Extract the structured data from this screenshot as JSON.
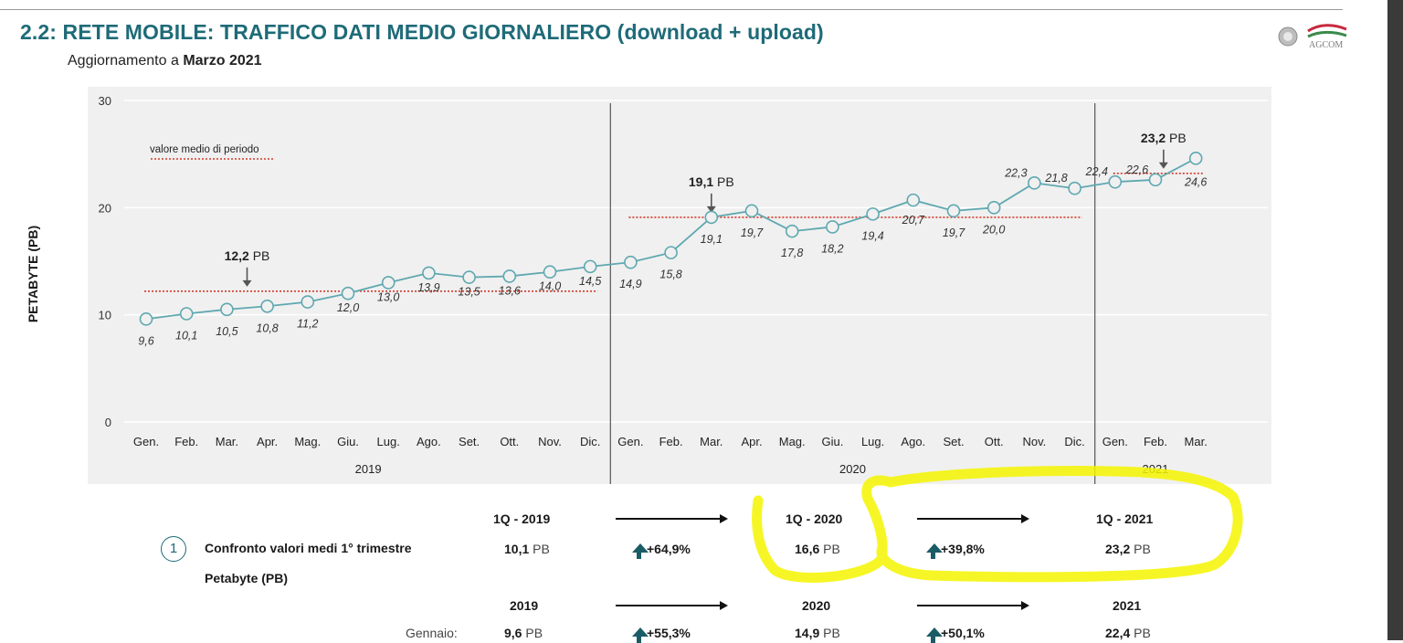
{
  "header": {
    "title": "2.2: RETE MOBILE: TRAFFICO DATI MEDIO GIORNALIERO (download + upload)",
    "subtitle_prefix": "Aggiornamento a ",
    "subtitle_bold": "Marzo 2021",
    "logo_text": "AGCOM"
  },
  "chart_data": {
    "type": "line",
    "ylabel": "PETABYTE (PB)",
    "ylim": [
      0,
      30
    ],
    "yticks": [
      0,
      10,
      20,
      30
    ],
    "grid": true,
    "categories": [
      "Gen.",
      "Feb.",
      "Mar.",
      "Apr.",
      "Mag.",
      "Giu.",
      "Lug.",
      "Ago.",
      "Set.",
      "Ott.",
      "Nov.",
      "Dic.",
      "Gen.",
      "Feb.",
      "Mar.",
      "Apr.",
      "Mag.",
      "Giu.",
      "Lug.",
      "Ago.",
      "Set.",
      "Ott.",
      "Nov.",
      "Dic.",
      "Gen.",
      "Feb.",
      "Mar."
    ],
    "values": [
      9.6,
      10.1,
      10.5,
      10.8,
      11.2,
      12.0,
      13.0,
      13.9,
      13.5,
      13.6,
      14.0,
      14.5,
      14.9,
      15.8,
      19.1,
      19.7,
      17.8,
      18.2,
      19.4,
      20.7,
      19.7,
      20.0,
      22.3,
      21.8,
      22.4,
      22.6,
      24.6
    ],
    "point_labels": [
      "9,6",
      "10,1",
      "10,5",
      "10,8",
      "11,2",
      "12,0",
      "13,0",
      "13,9",
      "13,5",
      "13,6",
      "14,0",
      "14,5",
      "14,9",
      "15,8",
      "19,1",
      "19,7",
      "17,8",
      "18,2",
      "19,4",
      "20,7",
      "19,7",
      "20,0",
      "22,3",
      "21,8",
      "22,4",
      "22,6",
      "24,6"
    ],
    "years": [
      {
        "label": "2019",
        "start": 0,
        "end": 11
      },
      {
        "label": "2020",
        "start": 12,
        "end": 23
      },
      {
        "label": "2021",
        "start": 24,
        "end": 26
      }
    ],
    "period_means": [
      {
        "value": 12.2,
        "label": "12,2",
        "unit": "PB",
        "start": 0,
        "end": 11,
        "arrow_at": 2.5
      },
      {
        "value": 19.1,
        "label": "19,1",
        "unit": "PB",
        "start": 12,
        "end": 23,
        "arrow_at": 14
      },
      {
        "value": 23.2,
        "label": "23,2",
        "unit": "PB",
        "start": 24,
        "end": 26,
        "arrow_at": 25.2
      }
    ],
    "legend_text": "valore medio di periodo",
    "colors": {
      "line": "#5fa8b0",
      "mean": "#d23a2a",
      "plot_bg": "#f0f0f0",
      "grid": "#ffffff"
    }
  },
  "comparison": {
    "row1": {
      "badge": "1",
      "label_line1": "Confronto valori medi 1° trimestre",
      "label_line2": "Petabyte (PB)"
    },
    "headers": [
      "1Q - 2019",
      "1Q - 2020",
      "1Q - 2021"
    ],
    "values": [
      "10,1",
      "16,6",
      "23,2"
    ],
    "unit": "PB",
    "changes": [
      "+64,9%",
      "+39,8%"
    ],
    "year_headers": [
      "2019",
      "2020",
      "2021"
    ],
    "row2_label": "Gennaio:",
    "row2_values": [
      "9,6",
      "14,9",
      "22,4"
    ],
    "row2_changes": [
      "+55,3%",
      "+50,1%"
    ]
  },
  "colors": {
    "title": "#1e6b78",
    "up_arrow": "#1a5c66",
    "highlight": "#f5f500"
  }
}
